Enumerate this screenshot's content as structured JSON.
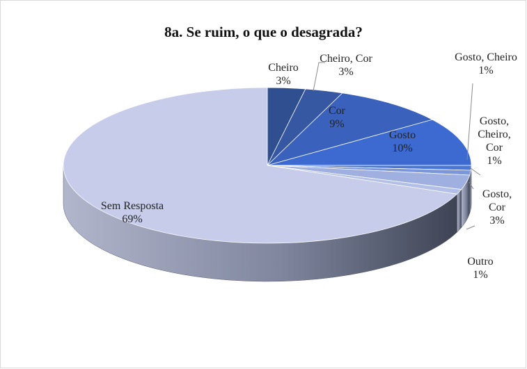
{
  "chart_data": {
    "type": "pie3d",
    "title": "8a. Se ruim, o que o desagrada?",
    "categories": [
      "Cheiro",
      "Cheiro, Cor",
      "Cor",
      "Gosto",
      "Gosto, Cheiro",
      "Gosto, Cheiro, Cor",
      "Gosto, Cor",
      "Outro",
      "Sem Resposta"
    ],
    "values": [
      3,
      3,
      9,
      10,
      1,
      1,
      3,
      1,
      69
    ],
    "value_labels": [
      "3%",
      "3%",
      "9%",
      "10%",
      "1%",
      "1%",
      "3%",
      "1%",
      "69%"
    ],
    "colors": [
      "#2f4f91",
      "#3658a3",
      "#3a62bd",
      "#3d6ad0",
      "#4a76d6",
      "#7b96d9",
      "#9eafe0",
      "#b3bfe6",
      "#c6cce9"
    ]
  }
}
